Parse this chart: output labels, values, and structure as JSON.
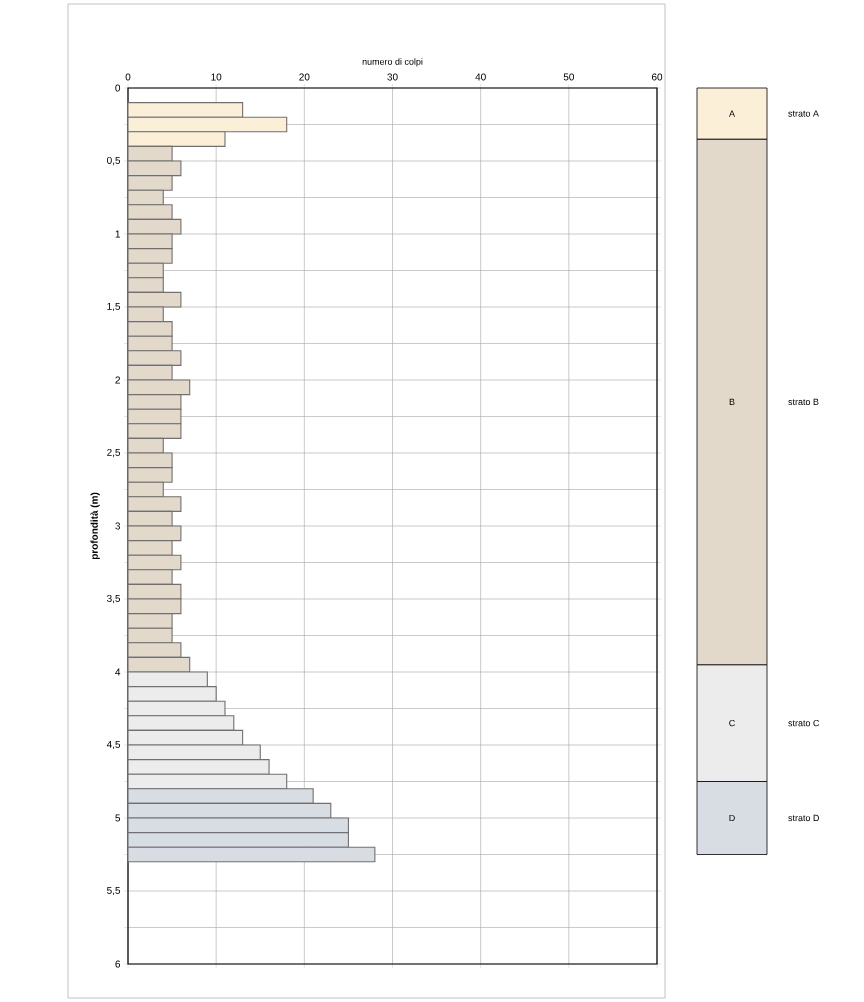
{
  "chart_data": [
    {
      "type": "bar",
      "orientation": "horizontal",
      "xlabel": "numero di colpi",
      "ylabel": "profondità (m)",
      "x": [
        0.15,
        0.25,
        0.35,
        0.45,
        0.55,
        0.65,
        0.75,
        0.85,
        0.95,
        1.05,
        1.15,
        1.25,
        1.35,
        1.45,
        1.55,
        1.65,
        1.75,
        1.85,
        1.95,
        2.05,
        2.15,
        2.25,
        2.35,
        2.45,
        2.55,
        2.65,
        2.75,
        2.85,
        2.95,
        3.05,
        3.15,
        3.25,
        3.35,
        3.45,
        3.55,
        3.65,
        3.75,
        3.85,
        3.95,
        4.05,
        4.15,
        4.25,
        4.35,
        4.45,
        4.55,
        4.65,
        4.75,
        4.85,
        4.95,
        5.05,
        5.15,
        5.25
      ],
      "values": [
        13,
        18,
        11,
        5,
        6,
        5,
        4,
        5,
        6,
        5,
        5,
        4,
        4,
        6,
        4,
        5,
        5,
        6,
        5,
        7,
        6,
        6,
        6,
        4,
        5,
        5,
        4,
        6,
        5,
        6,
        5,
        6,
        5,
        6,
        6,
        5,
        5,
        6,
        7,
        9,
        10,
        11,
        12,
        13,
        15,
        16,
        18,
        21,
        23,
        25,
        25,
        28
      ],
      "colors": [
        "#fcefd8",
        "#fcefd8",
        "#fcefd8",
        "#e2d9cb",
        "#e2d9cb",
        "#e2d9cb",
        "#e2d9cb",
        "#e2d9cb",
        "#e2d9cb",
        "#e2d9cb",
        "#e2d9cb",
        "#e2d9cb",
        "#e2d9cb",
        "#e2d9cb",
        "#e2d9cb",
        "#e2d9cb",
        "#e2d9cb",
        "#e2d9cb",
        "#e2d9cb",
        "#e2d9cb",
        "#e2d9cb",
        "#e2d9cb",
        "#e2d9cb",
        "#e2d9cb",
        "#e2d9cb",
        "#e2d9cb",
        "#e2d9cb",
        "#e2d9cb",
        "#e2d9cb",
        "#e2d9cb",
        "#e2d9cb",
        "#e2d9cb",
        "#e2d9cb",
        "#e2d9cb",
        "#e2d9cb",
        "#e2d9cb",
        "#e2d9cb",
        "#e2d9cb",
        "#e2d9cb",
        "#ececec",
        "#ececec",
        "#ececec",
        "#ececec",
        "#ececec",
        "#ececec",
        "#ececec",
        "#ececec",
        "#d8dde4",
        "#d8dde4",
        "#d8dde4",
        "#d8dde4",
        "#d8dde4"
      ],
      "xlim": [
        0,
        60
      ],
      "xticks": [
        0,
        10,
        20,
        30,
        40,
        50,
        60
      ],
      "ylim": [
        6,
        0
      ],
      "yticks": [
        0,
        {
          "value": 0.25,
          "label": null
        },
        {
          "value": 0.5,
          "label": "0,5"
        },
        {
          "value": 0.75,
          "label": null
        },
        1,
        {
          "value": 1.25,
          "label": null
        },
        {
          "value": 1.5,
          "label": "1,5"
        },
        {
          "value": 1.75,
          "label": null
        },
        2,
        {
          "value": 2.25,
          "label": null
        },
        {
          "value": 2.5,
          "label": "2,5"
        },
        {
          "value": 2.75,
          "label": null
        },
        3,
        {
          "value": 3.25,
          "label": null
        },
        {
          "value": 3.5,
          "label": "3,5"
        },
        {
          "value": 3.75,
          "label": null
        },
        4,
        {
          "value": 4.25,
          "label": null
        },
        {
          "value": 4.5,
          "label": "4,5"
        },
        {
          "value": 4.75,
          "label": null
        },
        5,
        {
          "value": 5.25,
          "label": null
        },
        {
          "value": 5.5,
          "label": "5,5"
        },
        {
          "value": 5.75,
          "label": null
        },
        6
      ],
      "grid": true
    },
    {
      "type": "bar",
      "stacked": true,
      "categories": [
        null
      ],
      "ylim": [
        6,
        0
      ],
      "tick_labels": false,
      "series": [
        {
          "name": "strato A",
          "color": "#fcefd8",
          "values": [
            0.35
          ],
          "value_labels": [
            "A"
          ]
        },
        {
          "name": "strato B",
          "color": "#e2d9cb",
          "values": [
            3.6
          ],
          "value_labels": [
            "B"
          ]
        },
        {
          "name": "strato C",
          "color": "#ececec",
          "values": [
            0.8
          ],
          "value_labels": [
            "C"
          ]
        },
        {
          "name": "strato D",
          "color": "#d8dde4",
          "values": [
            0.5
          ],
          "value_labels": [
            "D"
          ]
        }
      ]
    }
  ]
}
